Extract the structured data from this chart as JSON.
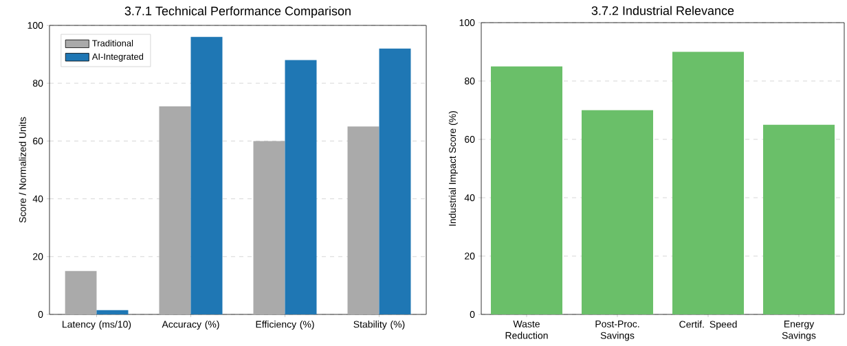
{
  "chart_data": [
    {
      "type": "bar",
      "title": "3.7.1 Technical Performance Comparison",
      "ylabel": "Score / Normalized Units",
      "categories": [
        "Latency (ms/10)",
        "Accuracy (%)",
        "Efficiency (%)",
        "Stability (%)"
      ],
      "series": [
        {
          "name": "Traditional",
          "color": "#aaaaaa",
          "values": [
            15,
            72,
            60,
            65
          ]
        },
        {
          "name": "AI-Integrated",
          "color": "#1f77b4",
          "values": [
            1.5,
            96,
            88,
            92
          ]
        }
      ],
      "ylim": [
        0,
        100
      ],
      "yticks": [
        0,
        20,
        40,
        60,
        80,
        100
      ],
      "grid": "y",
      "legend": "top left"
    },
    {
      "type": "bar",
      "title": "3.7.2 Industrial Relevance",
      "ylabel": "Industrial Impact Score (%)",
      "categories": [
        "Waste Reduction",
        "Post-Proc. Savings",
        "Certif. Speed",
        "Energy Savings"
      ],
      "values": [
        85,
        70,
        90,
        65
      ],
      "color": "#6abf69",
      "ylim": [
        0,
        100
      ],
      "yticks": [
        0,
        20,
        40,
        60,
        80,
        100
      ],
      "grid": "y"
    }
  ]
}
